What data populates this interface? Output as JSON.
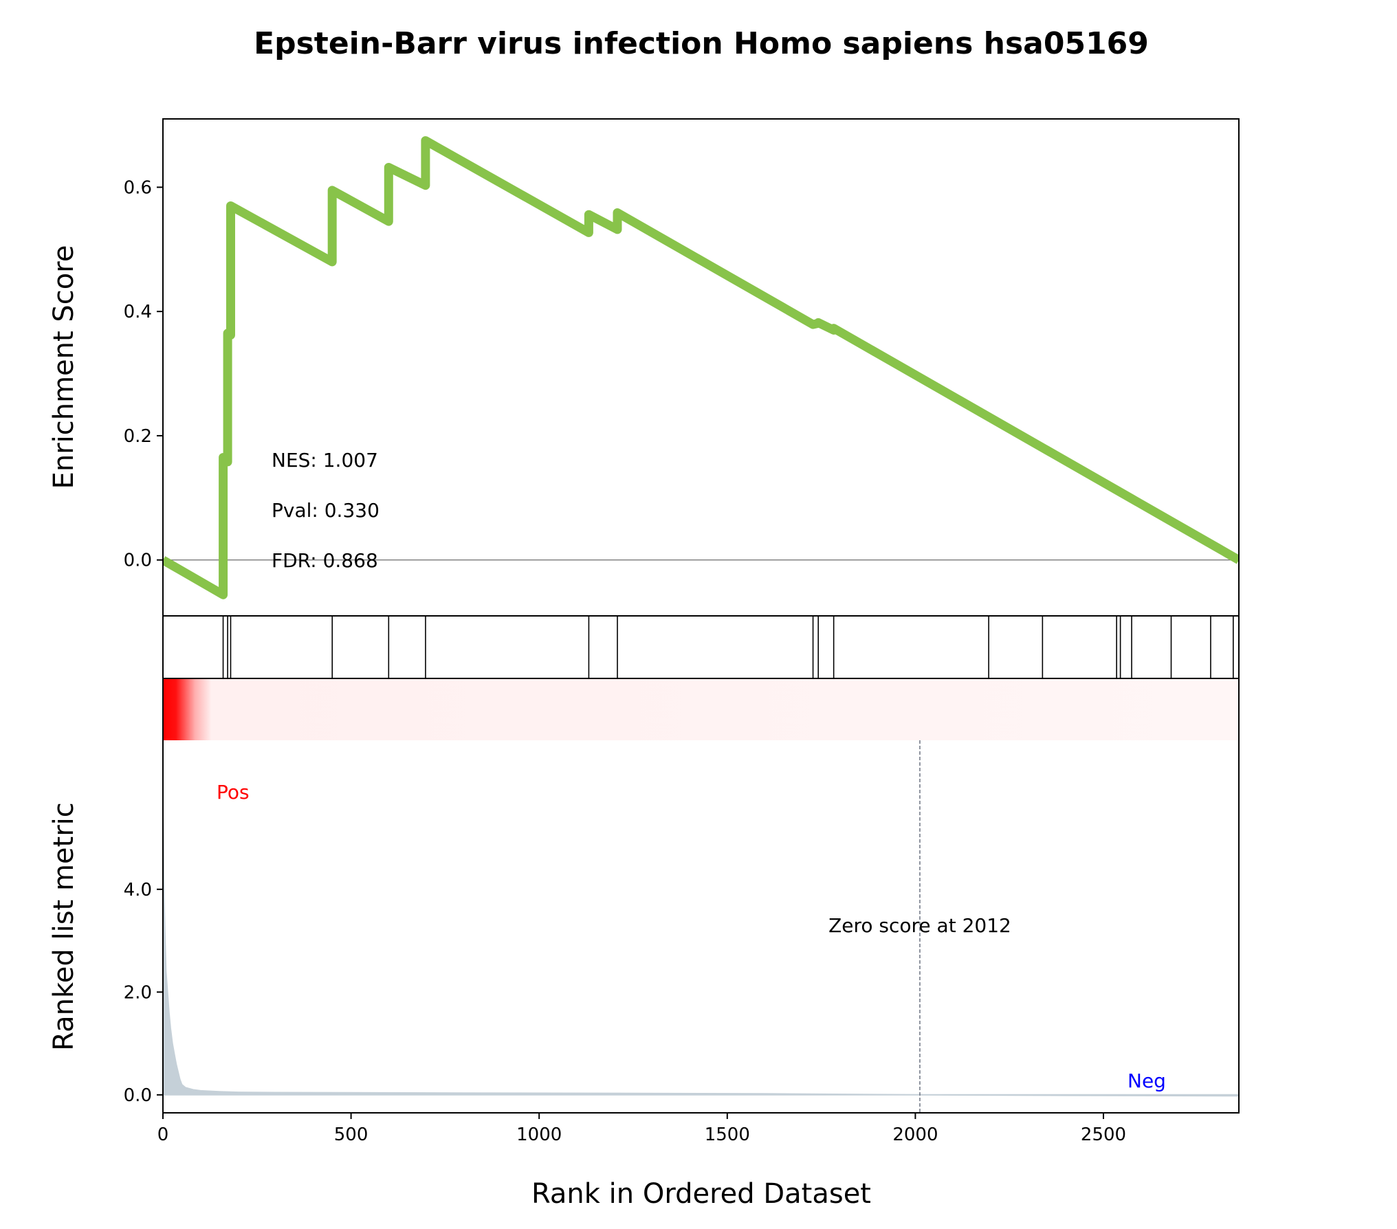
{
  "chart_data": {
    "type": "line",
    "title": "Epstein-Barr virus infection Homo sapiens hsa05169",
    "top_panel": {
      "ylabel": "Enrichment Score",
      "ylim": [
        -0.09,
        0.71
      ],
      "yticks": [
        0.0,
        0.2,
        0.4,
        0.6
      ],
      "ytick_labels": [
        "0.0",
        "0.2",
        "0.4",
        "0.6"
      ],
      "line_color": "#88c34a",
      "running_es": {
        "x": [
          0,
          160,
          160,
          172,
          172,
          180,
          180,
          450,
          450,
          600,
          600,
          698,
          698,
          1132,
          1132,
          1208,
          1208,
          1728,
          1742,
          1742,
          1783,
          1783,
          2860
        ],
        "y": [
          0.0,
          -0.056,
          0.165,
          0.158,
          0.365,
          0.362,
          0.57,
          0.48,
          0.595,
          0.545,
          0.632,
          0.603,
          0.675,
          0.527,
          0.556,
          0.532,
          0.559,
          0.379,
          0.381,
          0.382,
          0.37,
          0.373,
          0.0
        ]
      },
      "stats": {
        "nes": "NES: 1.007",
        "pval": "Pval: 0.330",
        "fdr": "FDR: 0.868"
      }
    },
    "hits": [
      160,
      172,
      180,
      450,
      600,
      698,
      1132,
      1208,
      1728,
      1742,
      1783,
      2195,
      2338,
      2535,
      2545,
      2575,
      2680,
      2785,
      2845
    ],
    "bottom_panel": {
      "ylabel": "Ranked list metric",
      "ylim": [
        -0.35,
        6.9
      ],
      "yticks": [
        0.0,
        2.0,
        4.0
      ],
      "ytick_labels": [
        "0.0",
        "2.0",
        "4.0"
      ],
      "fill_color": "#c5d0d8",
      "metric": {
        "x": [
          0,
          1,
          3,
          5,
          8,
          12,
          16,
          20,
          25,
          30,
          35,
          40,
          45,
          50,
          60,
          80,
          100,
          150,
          200,
          300,
          500,
          800,
          1200,
          1600,
          2012,
          2400,
          2860
        ],
        "y": [
          5.4,
          5.0,
          3.8,
          3.2,
          2.4,
          2.0,
          1.6,
          1.3,
          1.0,
          0.8,
          0.6,
          0.45,
          0.3,
          0.2,
          0.14,
          0.1,
          0.08,
          0.06,
          0.05,
          0.045,
          0.04,
          0.035,
          0.03,
          0.02,
          0.0,
          -0.01,
          -0.02
        ]
      },
      "pos_label": "Pos",
      "neg_label": "Neg",
      "pos_color": "#ff0000",
      "neg_color": "#0000ff",
      "zero_score_rank": 2012,
      "zero_score_label": "Zero score at 2012"
    },
    "xlabel": "Rank in Ordered Dataset",
    "xlim": [
      0,
      2860
    ],
    "xticks": [
      0,
      500,
      1000,
      1500,
      2000,
      2500
    ],
    "xtick_labels": [
      "0",
      "500",
      "1000",
      "1500",
      "2000",
      "2500"
    ]
  }
}
